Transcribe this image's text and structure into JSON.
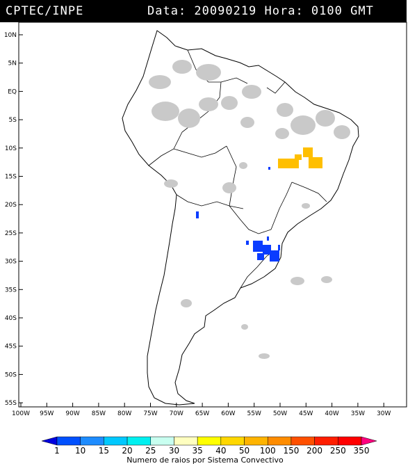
{
  "header": {
    "source": "CPTEC/INPE",
    "datetime": "Data: 20090219  Hora: 0100 GMT"
  },
  "lat_ticks": [
    "10N",
    "5N",
    "EQ",
    "5S",
    "10S",
    "15S",
    "20S",
    "25S",
    "30S",
    "35S",
    "40S",
    "45S",
    "50S",
    "55S"
  ],
  "lon_ticks": [
    "100W",
    "95W",
    "90W",
    "85W",
    "80W",
    "75W",
    "70W",
    "65W",
    "60W",
    "55W",
    "50W",
    "45W",
    "40W",
    "35W",
    "30W"
  ],
  "legend": {
    "values": [
      "1",
      "10",
      "15",
      "20",
      "25",
      "30",
      "35",
      "40",
      "50",
      "100",
      "150",
      "200",
      "250",
      "350"
    ],
    "colors": [
      "#0000e0",
      "#0050ff",
      "#1e8cff",
      "#00c8ff",
      "#00f0f0",
      "#c8fff0",
      "#ffffc0",
      "#ffff00",
      "#ffd700",
      "#ffb400",
      "#ff8c00",
      "#ff5000",
      "#ff1e00",
      "#ff0000",
      "#ff007f"
    ],
    "caption": "Numero de raios por Sistema Convectivo"
  },
  "colors": {
    "cloud": "#c9c9c9",
    "low_count": "#0a3cff",
    "high_count": "#ffbf00"
  }
}
